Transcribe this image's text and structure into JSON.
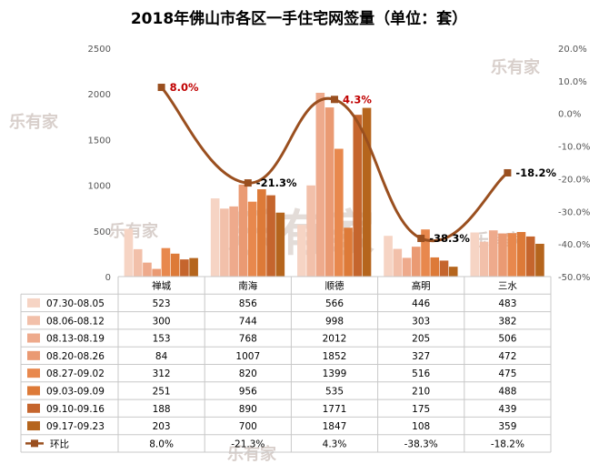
{
  "chart_data": {
    "type": "bar",
    "title": "2018年佛山市各区一手住宅网签量（单位：套）",
    "categories": [
      "禅城",
      "南海",
      "顺德",
      "高明",
      "三水"
    ],
    "ylim": [
      0,
      2500
    ],
    "yticks": [
      0,
      500,
      1000,
      1500,
      2000,
      2500
    ],
    "y2lim": [
      -50.0,
      20.0
    ],
    "y2ticks": [
      "-50.0%",
      "-40.0%",
      "-30.0%",
      "-20.0%",
      "-10.0%",
      "0.0%",
      "10.0%",
      "20.0%"
    ],
    "grid": false,
    "legend": "bottom data table",
    "series": [
      {
        "name": "07.30-08.05",
        "color": "#f6d4c4",
        "values": [
          523,
          856,
          566,
          446,
          483
        ]
      },
      {
        "name": "08.06-08.12",
        "color": "#f2c0aa",
        "values": [
          300,
          744,
          998,
          303,
          382
        ]
      },
      {
        "name": "08.13-08.19",
        "color": "#eeaa8c",
        "values": [
          153,
          768,
          2012,
          205,
          506
        ]
      },
      {
        "name": "08.20-08.26",
        "color": "#ea9a73",
        "values": [
          84,
          1007,
          1852,
          327,
          472
        ]
      },
      {
        "name": "08.27-09.02",
        "color": "#e8884d",
        "values": [
          312,
          820,
          1399,
          516,
          475
        ]
      },
      {
        "name": "09.03-09.09",
        "color": "#dd7a38",
        "values": [
          251,
          956,
          535,
          210,
          488
        ]
      },
      {
        "name": "09.10-09.16",
        "color": "#c5652d",
        "values": [
          188,
          890,
          1771,
          175,
          439
        ]
      },
      {
        "name": "09.17-09.23",
        "color": "#b5651d",
        "values": [
          203,
          700,
          1847,
          108,
          359
        ]
      }
    ],
    "line": {
      "name": "环比",
      "color": "#9a4f1f",
      "values": [
        8.0,
        -21.3,
        4.3,
        -38.3,
        -18.2
      ],
      "labels": [
        "8.0%",
        "-21.3%",
        "4.3%",
        "-38.3%",
        "-18.2%"
      ],
      "label_colors": [
        "#c00000",
        "#000000",
        "#c00000",
        "#000000",
        "#000000"
      ]
    }
  },
  "watermarks": [
    "乐有家",
    "乐有家",
    "乐有家",
    "乐有家",
    "乐有家",
    "乐有家"
  ]
}
